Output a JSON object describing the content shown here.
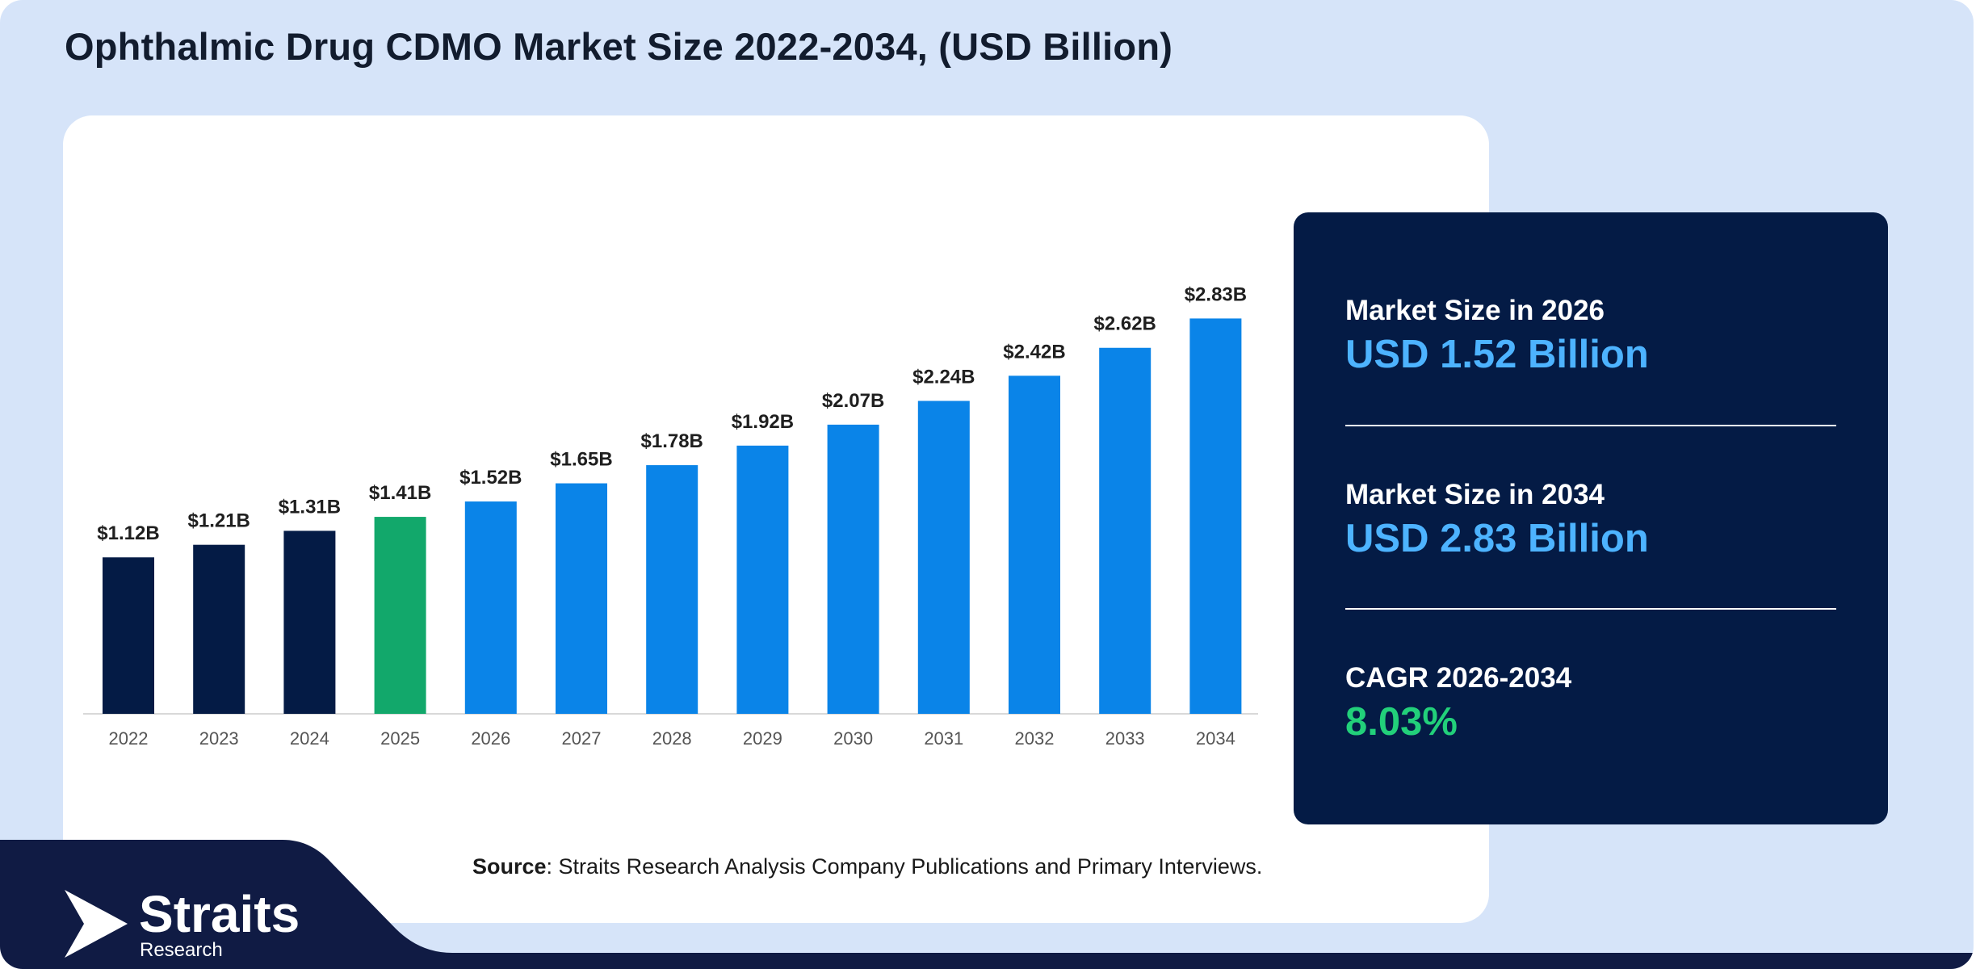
{
  "title": "Ophthalmic Drug CDMO Market Size 2022-2034, (USD Billion)",
  "chart_data": {
    "type": "bar",
    "categories": [
      "2022",
      "2023",
      "2024",
      "2025",
      "2026",
      "2027",
      "2028",
      "2029",
      "2030",
      "2031",
      "2032",
      "2033",
      "2034"
    ],
    "values": [
      1.12,
      1.21,
      1.31,
      1.41,
      1.52,
      1.65,
      1.78,
      1.92,
      2.07,
      2.24,
      2.42,
      2.62,
      2.83
    ],
    "data_labels": [
      "$1.12B",
      "$1.21B",
      "$1.31B",
      "$1.41B",
      "$1.52B",
      "$1.65B",
      "$1.78B",
      "$1.92B",
      "$2.07B",
      "$2.24B",
      "$2.42B",
      "$2.62B",
      "$2.83B"
    ],
    "bar_colors": [
      "#041b45",
      "#041b45",
      "#041b45",
      "#12a86b",
      "#0a84e8",
      "#0a84e8",
      "#0a84e8",
      "#0a84e8",
      "#0a84e8",
      "#0a84e8",
      "#0a84e8",
      "#0a84e8",
      "#0a84e8"
    ],
    "xlabel": "",
    "ylabel": "",
    "ylim": [
      0,
      3.0
    ],
    "grid": false,
    "legend": "none"
  },
  "stats": {
    "size_2026_label": "Market Size in 2026",
    "size_2026_value": "USD 1.52 Billion",
    "size_2034_label": "Market Size in 2034",
    "size_2034_value": "USD 2.83 Billion",
    "cagr_label": "CAGR 2026-2034",
    "cagr_value": "8.03%"
  },
  "source": {
    "label": "Source",
    "text": ": Straits Research Analysis Company Publications and Primary Interviews."
  },
  "logo": {
    "name": "Straits",
    "sub": "Research"
  },
  "colors": {
    "background": "#d6e4f9",
    "panel": "#041b45",
    "accent_blue": "#4db3ff",
    "accent_green": "#22d07a"
  }
}
